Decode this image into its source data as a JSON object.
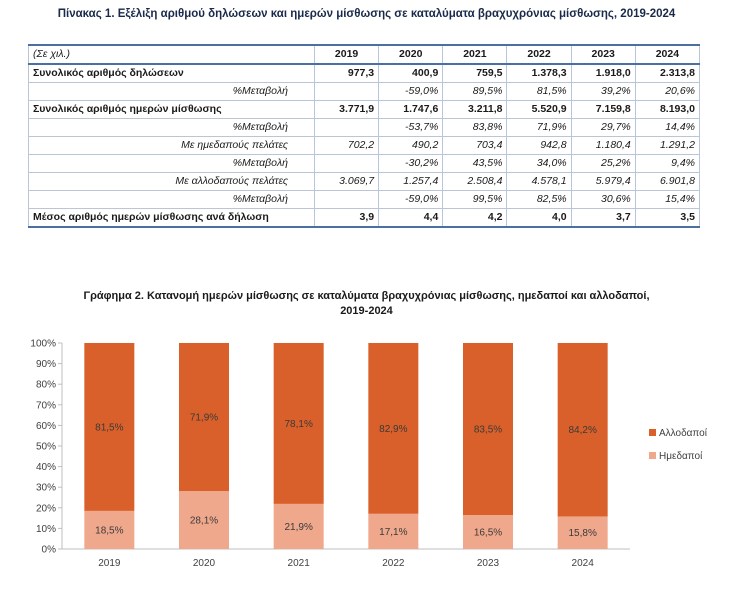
{
  "table": {
    "title": "Πίνακας 1. Εξέλιξη αριθμού δηλώσεων και ημερών μίσθωσης σε καταλύματα βραχυχρόνιας μίσθωσης, 2019-2024",
    "unit_label": "(Σε χιλ.)",
    "years": [
      "2019",
      "2020",
      "2021",
      "2022",
      "2023",
      "2024"
    ],
    "rows": [
      {
        "label": "Συνολικός αριθμός δηλώσεων",
        "values": [
          "977,3",
          "400,9",
          "759,5",
          "1.378,3",
          "1.918,0",
          "2.313,8"
        ]
      },
      {
        "label": "%Μεταβολή",
        "values": [
          "",
          "-59,0%",
          "89,5%",
          "81,5%",
          "39,2%",
          "20,6%"
        ]
      },
      {
        "label": "Συνολικός αριθμός ημερών μίσθωσης",
        "values": [
          "3.771,9",
          "1.747,6",
          "3.211,8",
          "5.520,9",
          "7.159,8",
          "8.193,0"
        ]
      },
      {
        "label": "%Μεταβολή",
        "values": [
          "",
          "-53,7%",
          "83,8%",
          "71,9%",
          "29,7%",
          "14,4%"
        ]
      },
      {
        "label": "Με ημεδαπούς πελάτες",
        "values": [
          "702,2",
          "490,2",
          "703,4",
          "942,8",
          "1.180,4",
          "1.291,2"
        ]
      },
      {
        "label": "%Μεταβολή",
        "values": [
          "",
          "-30,2%",
          "43,5%",
          "34,0%",
          "25,2%",
          "9,4%"
        ]
      },
      {
        "label": "Με αλλοδαπούς πελάτες",
        "values": [
          "3.069,7",
          "1.257,4",
          "2.508,4",
          "4.578,1",
          "5.979,4",
          "6.901,8"
        ]
      },
      {
        "label": "%Μεταβολή",
        "values": [
          "",
          "-59,0%",
          "99,5%",
          "82,5%",
          "30,6%",
          "15,4%"
        ]
      },
      {
        "label": "Μέσος αριθμός ημερών μίσθωσης ανά δήλωση",
        "values": [
          "3,9",
          "4,4",
          "4,2",
          "4,0",
          "3,7",
          "3,5"
        ]
      }
    ]
  },
  "chart_title_line1": "Γράφημα 2. Κατανομή ημερών μίσθωσης σε καταλύματα βραχυχρόνιας μίσθωσης, ημεδαποί και αλλοδαποί,",
  "chart_title_line2": "2019-2024",
  "chart_data": {
    "type": "bar",
    "stacked": true,
    "percent": true,
    "categories": [
      "2019",
      "2020",
      "2021",
      "2022",
      "2023",
      "2024"
    ],
    "series": [
      {
        "name": "Ημεδαποί",
        "values": [
          18.5,
          28.1,
          21.9,
          17.1,
          16.5,
          15.8
        ],
        "labels": [
          "18,5%",
          "28,1%",
          "21,9%",
          "17,1%",
          "16,5%",
          "15,8%"
        ],
        "color": "#f0a88c"
      },
      {
        "name": "Αλλοδαποί",
        "values": [
          81.5,
          71.9,
          78.1,
          82.9,
          83.5,
          84.2
        ],
        "labels": [
          "81,5%",
          "71,9%",
          "78,1%",
          "82,9%",
          "83,5%",
          "84,2%"
        ],
        "color": "#d9602a"
      }
    ],
    "yticks": [
      "0%",
      "10%",
      "20%",
      "30%",
      "40%",
      "50%",
      "60%",
      "70%",
      "80%",
      "90%",
      "100%"
    ],
    "ylim": [
      0,
      100
    ],
    "legend_position": "right",
    "legend_order": [
      "Αλλοδαποί",
      "Ημεδαποί"
    ]
  }
}
